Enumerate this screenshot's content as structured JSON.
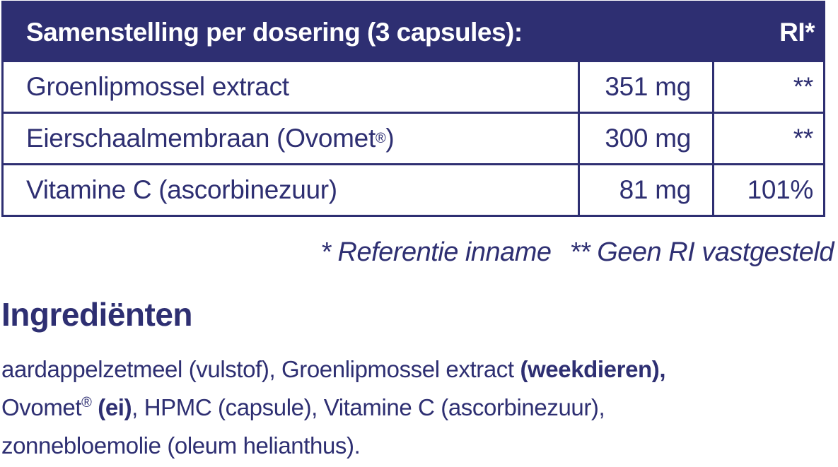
{
  "table": {
    "header_label": "Samenstelling per dosering (3 capsules):",
    "header_ri": "RI*",
    "rows": [
      {
        "name": "Groenlipmossel extract",
        "name_sup": "",
        "name_suffix": "",
        "amount": "351 mg",
        "ri": "**"
      },
      {
        "name": "Eierschaalmembraan (Ovomet",
        "name_sup": "®",
        "name_suffix": ")",
        "amount": "300 mg",
        "ri": "**"
      },
      {
        "name": "Vitamine C (ascorbinezuur)",
        "name_sup": "",
        "name_suffix": "",
        "amount": "81 mg",
        "ri": "101%"
      }
    ]
  },
  "footnote": {
    "ri_note": "* Referentie inname",
    "no_ri_note": "** Geen RI vastgesteld"
  },
  "ingredients": {
    "title": "Ingrediënten",
    "part1": "aardappelzetmeel (vulstof), Groenlipmossel extract ",
    "allergen1": "(weekdieren),",
    "part2": "Ovomet",
    "part2_sup": "®",
    "part2b": " ",
    "allergen2": "(ei)",
    "part3": ", HPMC (capsule), Vitamine C (ascorbinezuur),",
    "part4": "zonnebloemolie (oleum helianthus)."
  },
  "colors": {
    "brand": "#2e2f72",
    "background": "#ffffff"
  }
}
